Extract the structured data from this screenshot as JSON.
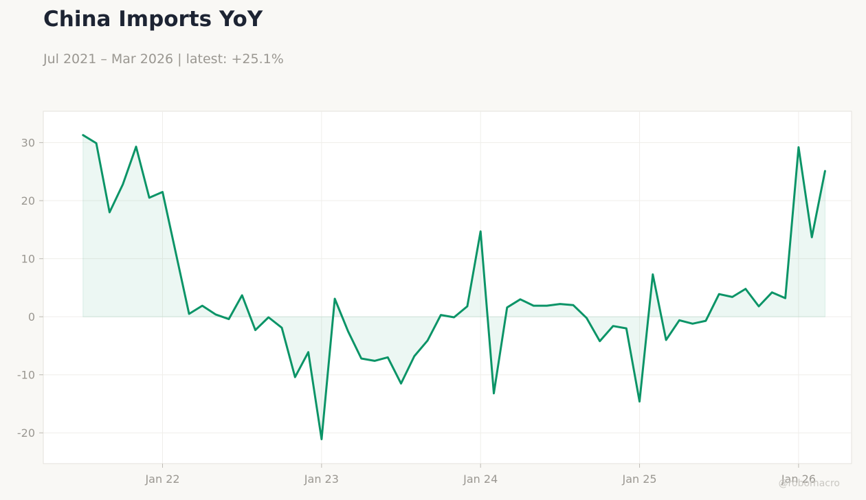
{
  "header": {
    "title": "China Imports YoY",
    "subtitle": "Jul 2021 – Mar 2026 | latest: +25.1%"
  },
  "watermark": "@robomacro",
  "colors": {
    "line": "#0b9467",
    "fill": "#0b9467",
    "background": "#f9f8f5",
    "plot_background": "#ffffff",
    "axis_text": "#9a9791"
  },
  "chart_data": {
    "type": "area",
    "title": "China Imports YoY",
    "subtitle": "Jul 2021 – Mar 2026 | latest: +25.1%",
    "xlabel": "",
    "ylabel": "",
    "ylim": [
      -25.3,
      35.4
    ],
    "grid": true,
    "legend": "none",
    "x_ticks": [
      {
        "label": "Jan 22",
        "date": "2022-01"
      },
      {
        "label": "Jan 23",
        "date": "2023-01"
      },
      {
        "label": "Jan 24",
        "date": "2024-01"
      },
      {
        "label": "Jan 25",
        "date": "2025-01"
      },
      {
        "label": "Jan 26",
        "date": "2026-01"
      }
    ],
    "y_ticks": [
      30,
      20,
      10,
      0,
      -10,
      -20
    ],
    "y_tick_labels": [
      "30",
      "20",
      "10",
      "0",
      "-10",
      "-20"
    ],
    "x_range": [
      "2021-04",
      "2026-05"
    ],
    "series": [
      {
        "dates": [
          "2021-07",
          "2021-08",
          "2021-09",
          "2021-10",
          "2021-11",
          "2021-12",
          "2022-01",
          "2022-03",
          "2022-04",
          "2022-05",
          "2022-06",
          "2022-07",
          "2022-08",
          "2022-09",
          "2022-10",
          "2022-11",
          "2022-12",
          "2023-01",
          "2023-02",
          "2023-03",
          "2023-04",
          "2023-05",
          "2023-06",
          "2023-07",
          "2023-08",
          "2023-09",
          "2023-10",
          "2023-11",
          "2023-12",
          "2024-01",
          "2024-02",
          "2024-03",
          "2024-04",
          "2024-05",
          "2024-06",
          "2024-07",
          "2024-08",
          "2024-09",
          "2024-10",
          "2024-11",
          "2024-12",
          "2025-01",
          "2025-02",
          "2025-03",
          "2025-04",
          "2025-05",
          "2025-06",
          "2025-07",
          "2025-08",
          "2025-09",
          "2025-10",
          "2025-11",
          "2025-12",
          "2026-01",
          "2026-02",
          "2026-03"
        ],
        "values": [
          31.3,
          29.9,
          18.0,
          22.8,
          29.3,
          20.5,
          21.5,
          0.5,
          1.9,
          0.4,
          -0.4,
          3.7,
          -2.3,
          -0.1,
          -1.9,
          -10.4,
          -6.1,
          -21.1,
          3.1,
          -2.5,
          -7.2,
          -7.6,
          -7.0,
          -11.5,
          -6.8,
          -4.1,
          0.3,
          -0.1,
          1.8,
          14.7,
          -13.2,
          1.6,
          3.0,
          1.9,
          1.9,
          2.2,
          2.0,
          -0.2,
          -4.2,
          -1.6,
          -2.0,
          -14.6,
          7.3,
          -4.0,
          -0.6,
          -1.2,
          -0.7,
          3.9,
          3.4,
          4.8,
          1.8,
          4.2,
          3.2,
          29.2,
          13.7,
          25.1
        ]
      }
    ]
  }
}
